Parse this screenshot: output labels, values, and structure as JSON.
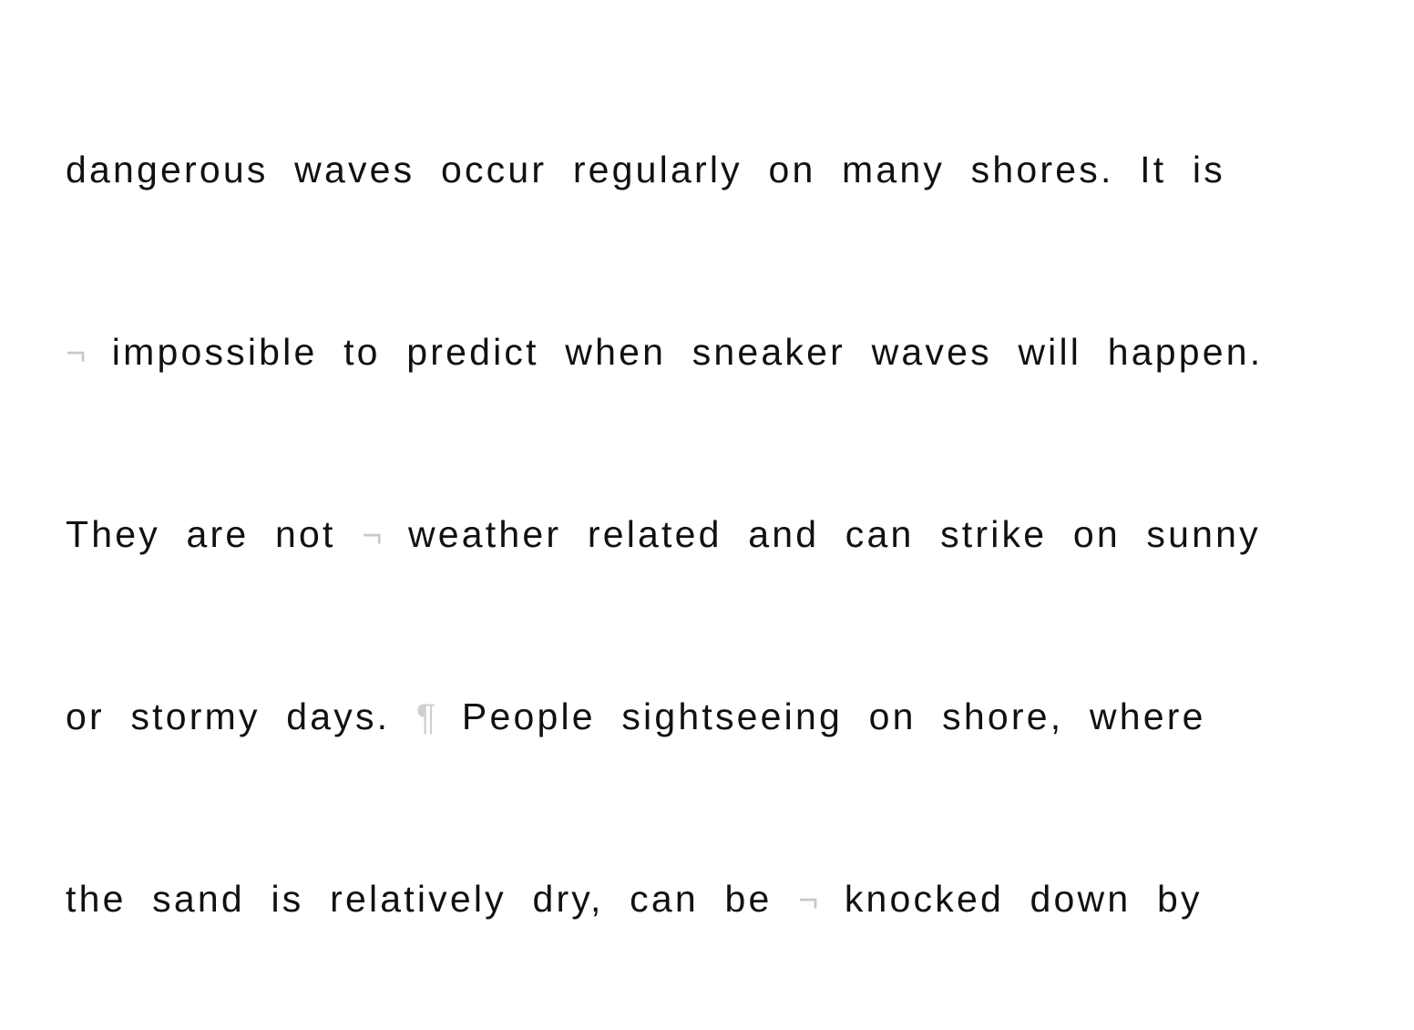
{
  "document": {
    "lines": [
      {
        "segments": [
          {
            "kind": "text",
            "value": "dangerous waves occur regularly on many shores. It is"
          }
        ]
      },
      {
        "segments": [
          {
            "kind": "mark",
            "value": "¬"
          },
          {
            "kind": "text",
            "value": " impossible to predict when sneaker waves will happen."
          }
        ]
      },
      {
        "segments": [
          {
            "kind": "text",
            "value": "They are not "
          },
          {
            "kind": "mark",
            "value": "¬"
          },
          {
            "kind": "text",
            "value": " weather related and can strike on sunny"
          }
        ]
      },
      {
        "segments": [
          {
            "kind": "text",
            "value": "or stormy days. "
          },
          {
            "kind": "mark",
            "value": "¶"
          },
          {
            "kind": "text",
            "value": " People sightseeing on shore, where"
          }
        ]
      },
      {
        "segments": [
          {
            "kind": "text",
            "value": "the sand is relatively dry, can be "
          },
          {
            "kind": "mark",
            "value": "¬"
          },
          {
            "kind": "text",
            "value": " knocked down by"
          }
        ]
      }
    ]
  },
  "colors": {
    "text": "#111111",
    "formatting_mark": "#c8c8c8",
    "background": "#ffffff"
  }
}
